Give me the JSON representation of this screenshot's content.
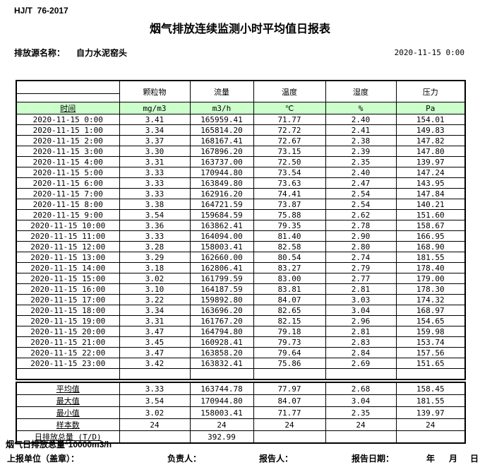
{
  "page": {
    "standard_code": "HJ/T  76-2017",
    "title": "烟气排放连续监测小时平均值日报表",
    "source_label": "排放源名称：",
    "source_name": "自力水泥窑头",
    "report_datetime": "2020-11-15 0:00"
  },
  "table": {
    "time_header": "时间",
    "unit_row_bg": "#ccffcc",
    "columns": [
      {
        "name": "颗粒物",
        "unit": "mg/m3"
      },
      {
        "name": "流量",
        "unit": "m3/h"
      },
      {
        "name": "温度",
        "unit": "℃"
      },
      {
        "name": "湿度",
        "unit": "%"
      },
      {
        "name": "压力",
        "unit": "Pa"
      }
    ],
    "rows": [
      {
        "time": "2020-11-15 0:00",
        "values": [
          "3.41",
          "165959.41",
          "71.77",
          "2.40",
          "154.01"
        ]
      },
      {
        "time": "2020-11-15 1:00",
        "values": [
          "3.34",
          "165814.20",
          "72.72",
          "2.41",
          "149.83"
        ]
      },
      {
        "time": "2020-11-15 2:00",
        "values": [
          "3.37",
          "168167.41",
          "72.67",
          "2.38",
          "147.82"
        ]
      },
      {
        "time": "2020-11-15 3:00",
        "values": [
          "3.30",
          "167896.20",
          "73.15",
          "2.39",
          "147.80"
        ]
      },
      {
        "time": "2020-11-15 4:00",
        "values": [
          "3.31",
          "163737.00",
          "72.50",
          "2.35",
          "139.97"
        ]
      },
      {
        "time": "2020-11-15 5:00",
        "values": [
          "3.33",
          "170944.80",
          "73.54",
          "2.40",
          "147.24"
        ]
      },
      {
        "time": "2020-11-15 6:00",
        "values": [
          "3.33",
          "163849.80",
          "73.63",
          "2.47",
          "143.95"
        ]
      },
      {
        "time": "2020-11-15 7:00",
        "values": [
          "3.33",
          "162916.20",
          "74.41",
          "2.54",
          "147.84"
        ]
      },
      {
        "time": "2020-11-15 8:00",
        "values": [
          "3.38",
          "164721.59",
          "73.87",
          "2.54",
          "140.21"
        ]
      },
      {
        "time": "2020-11-15 9:00",
        "values": [
          "3.54",
          "159684.59",
          "75.88",
          "2.62",
          "151.60"
        ]
      },
      {
        "time": "2020-11-15 10:00",
        "values": [
          "3.36",
          "163862.41",
          "79.35",
          "2.78",
          "158.67"
        ]
      },
      {
        "time": "2020-11-15 11:00",
        "values": [
          "3.33",
          "164094.00",
          "81.40",
          "2.90",
          "166.95"
        ]
      },
      {
        "time": "2020-11-15 12:00",
        "values": [
          "3.28",
          "158003.41",
          "82.58",
          "2.80",
          "168.90"
        ]
      },
      {
        "time": "2020-11-15 13:00",
        "values": [
          "3.29",
          "162660.00",
          "80.54",
          "2.74",
          "181.55"
        ]
      },
      {
        "time": "2020-11-15 14:00",
        "values": [
          "3.18",
          "162806.41",
          "83.27",
          "2.79",
          "178.40"
        ]
      },
      {
        "time": "2020-11-15 15:00",
        "values": [
          "3.02",
          "161799.59",
          "83.00",
          "2.77",
          "179.00"
        ]
      },
      {
        "time": "2020-11-15 16:00",
        "values": [
          "3.10",
          "164187.59",
          "83.81",
          "2.81",
          "178.30"
        ]
      },
      {
        "time": "2020-11-15 17:00",
        "values": [
          "3.22",
          "159892.80",
          "84.07",
          "3.03",
          "174.32"
        ]
      },
      {
        "time": "2020-11-15 18:00",
        "values": [
          "3.34",
          "163696.20",
          "82.65",
          "3.04",
          "168.97"
        ]
      },
      {
        "time": "2020-11-15 19:00",
        "values": [
          "3.31",
          "161767.20",
          "82.15",
          "2.96",
          "154.65"
        ]
      },
      {
        "time": "2020-11-15 20:00",
        "values": [
          "3.47",
          "164794.80",
          "79.18",
          "2.81",
          "159.98"
        ]
      },
      {
        "time": "2020-11-15 21:00",
        "values": [
          "3.45",
          "160928.41",
          "79.73",
          "2.83",
          "153.74"
        ]
      },
      {
        "time": "2020-11-15 22:00",
        "values": [
          "3.47",
          "163858.20",
          "79.64",
          "2.84",
          "157.56"
        ]
      },
      {
        "time": "2020-11-15 23:00",
        "values": [
          "3.42",
          "163832.41",
          "75.86",
          "2.69",
          "151.65"
        ]
      }
    ],
    "summary": [
      {
        "label": "平均值",
        "values": [
          "3.33",
          "163744.78",
          "77.97",
          "2.68",
          "158.45"
        ]
      },
      {
        "label": "最大值",
        "values": [
          "3.54",
          "170944.80",
          "84.07",
          "3.04",
          "181.55"
        ]
      },
      {
        "label": "最小值",
        "values": [
          "3.02",
          "158003.41",
          "71.77",
          "2.35",
          "139.97"
        ]
      },
      {
        "label": "样本数",
        "values": [
          "24",
          "24",
          "24",
          "24",
          "24"
        ]
      },
      {
        "label": "日排放总量 (T/D)",
        "values": [
          "",
          "392.99",
          "",
          "",
          ""
        ]
      }
    ]
  },
  "footer": {
    "footnote": "烟气日排放总量*10000m3/h",
    "report_unit_label": "上报单位（盖章）：",
    "responsible_label": "负责人：",
    "reporter_label": "报告人：",
    "report_date_label": "报告日期：",
    "year_label": "年",
    "month_label": "月",
    "day_label": "日"
  }
}
